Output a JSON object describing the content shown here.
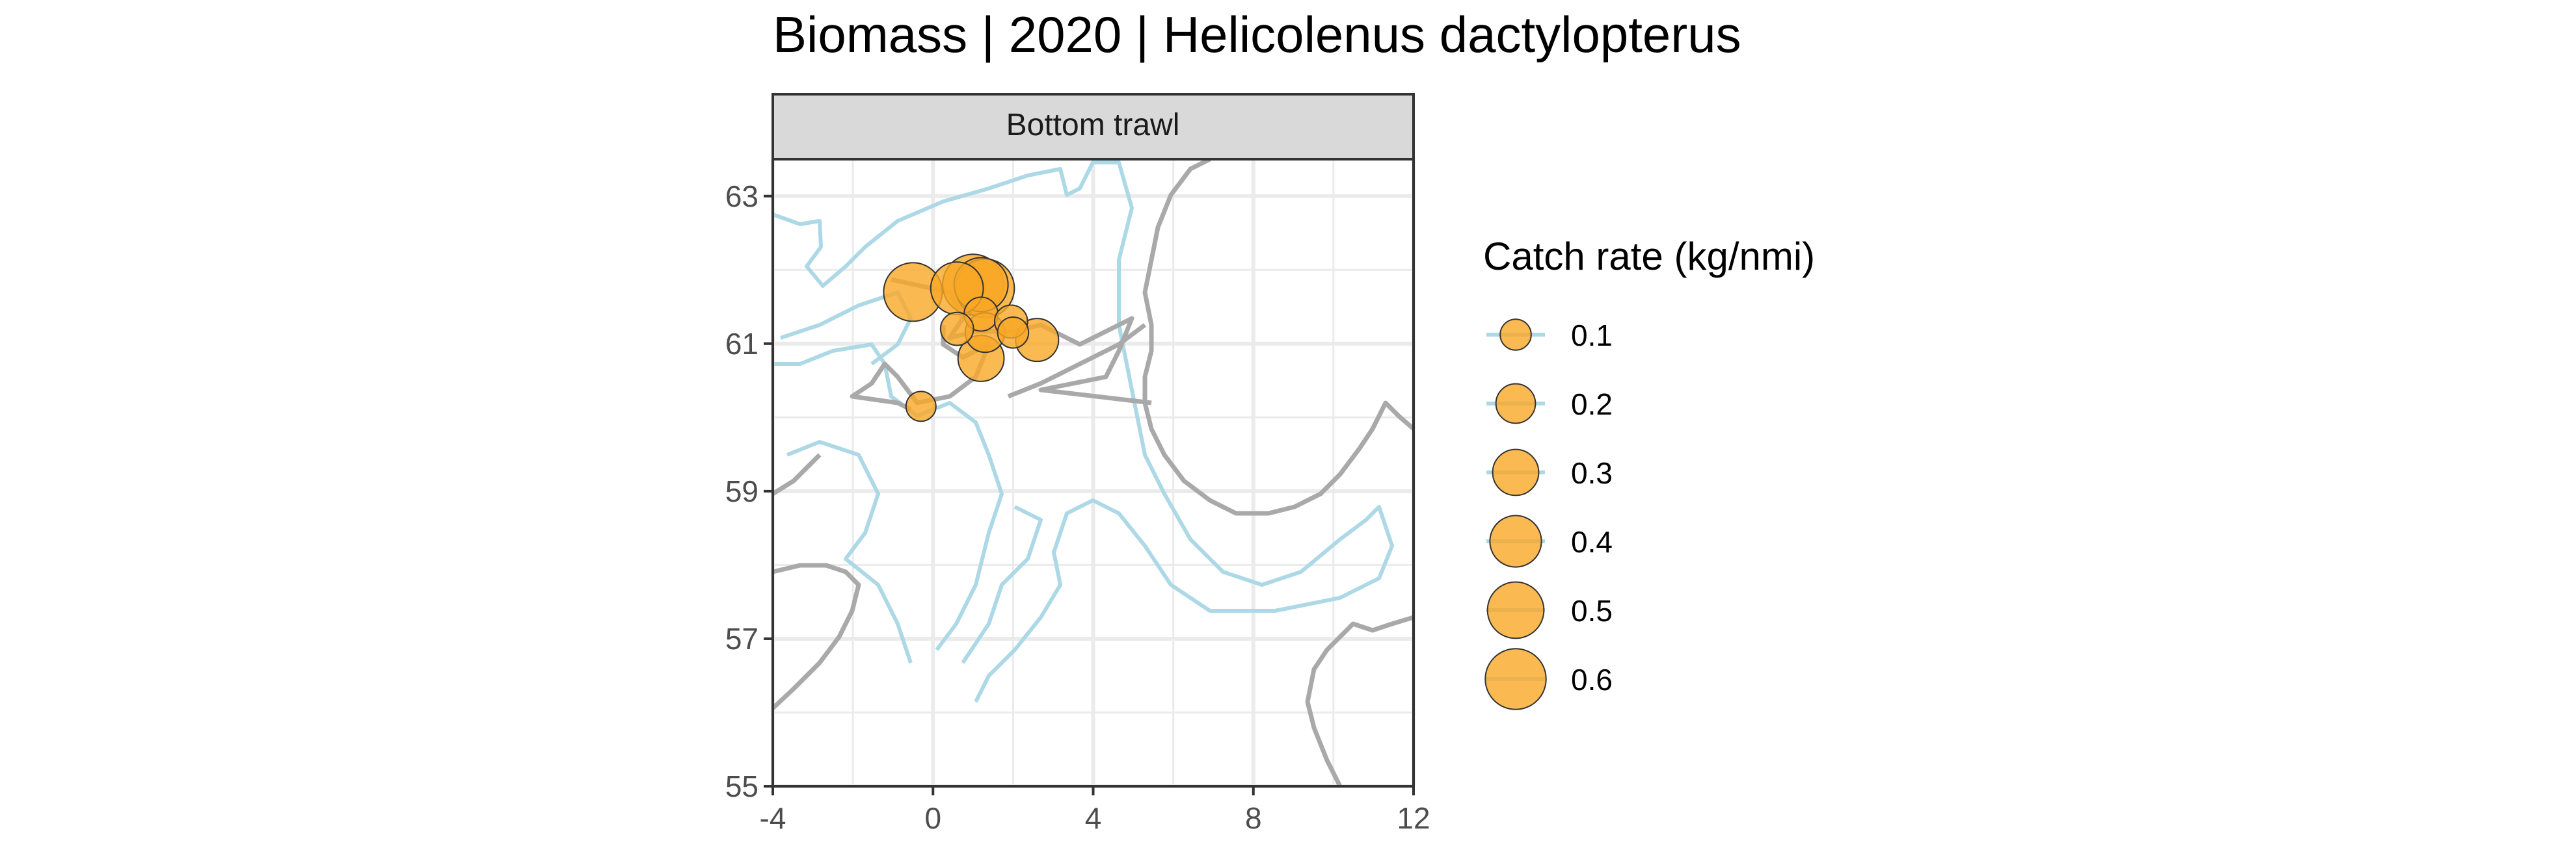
{
  "chart_data": {
    "type": "scatter",
    "title": "Biomass | 2020 | Helicolenus dactylopterus",
    "panel": "Bottom trawl",
    "xlabel": "",
    "ylabel": "",
    "xlim": [
      -4,
      12
    ],
    "ylim": [
      55,
      63.5
    ],
    "x_ticks": [
      -4,
      0,
      4,
      8,
      12
    ],
    "y_ticks": [
      55,
      57,
      59,
      61,
      63
    ],
    "grid": true,
    "legend_position": "right",
    "legend": {
      "title": "Catch rate (kg/nmi)",
      "values": [
        0.1,
        0.2,
        0.3,
        0.4,
        0.5,
        0.6
      ],
      "labels": [
        "0.1",
        "0.2",
        "0.3",
        "0.4",
        "0.5",
        "0.6"
      ]
    },
    "colors": {
      "point_fill": "#F9A825",
      "point_stroke": "#333333",
      "coastline": "#A9A9A9",
      "depth_contour": "#ADD8E6",
      "strip_bg": "#D9D9D9",
      "grid": "#EBEBEB"
    },
    "points": [
      {
        "x": -0.5,
        "y": 61.7,
        "size": 0.55
      },
      {
        "x": 0.6,
        "y": 61.75,
        "size": 0.42
      },
      {
        "x": 1.0,
        "y": 61.8,
        "size": 0.6
      },
      {
        "x": 1.3,
        "y": 61.75,
        "size": 0.55
      },
      {
        "x": 1.2,
        "y": 61.8,
        "size": 0.45
      },
      {
        "x": 1.2,
        "y": 61.4,
        "size": 0.13
      },
      {
        "x": 1.95,
        "y": 61.3,
        "size": 0.12
      },
      {
        "x": 0.6,
        "y": 61.2,
        "size": 0.12
      },
      {
        "x": 1.3,
        "y": 61.15,
        "size": 0.2
      },
      {
        "x": 2.0,
        "y": 61.15,
        "size": 0.1
      },
      {
        "x": 2.6,
        "y": 61.05,
        "size": 0.25
      },
      {
        "x": 1.2,
        "y": 60.8,
        "size": 0.3
      },
      {
        "x": -0.3,
        "y": 60.15,
        "size": 0.09
      }
    ]
  }
}
